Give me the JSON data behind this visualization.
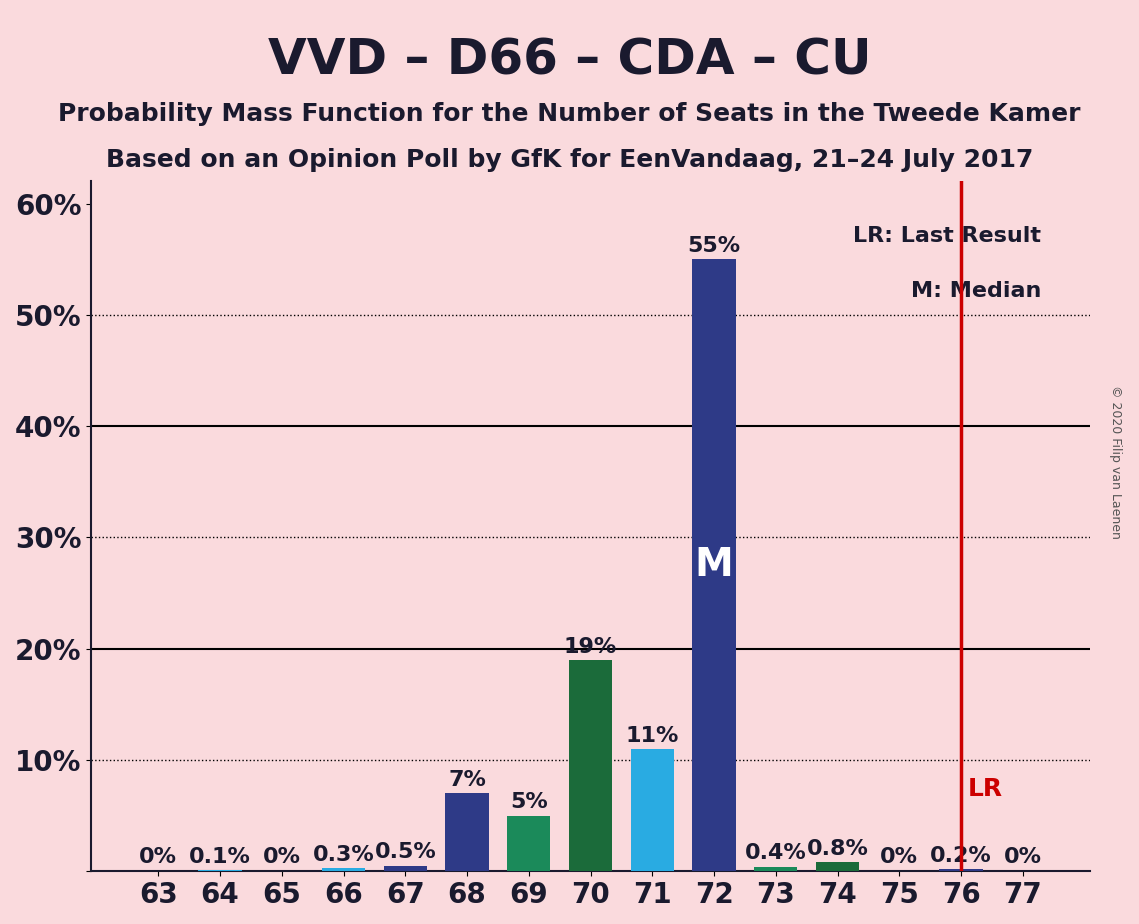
{
  "title": "VVD – D66 – CDA – CU",
  "subtitle1": "Probability Mass Function for the Number of Seats in the Tweede Kamer",
  "subtitle2": "Based on an Opinion Poll by GfK for EenVandaag, 21–24 July 2017",
  "copyright": "© 2020 Filip van Laenen",
  "categories": [
    63,
    64,
    65,
    66,
    67,
    68,
    69,
    70,
    71,
    72,
    73,
    74,
    75,
    76,
    77
  ],
  "values": [
    0.0,
    0.1,
    0.0,
    0.3,
    0.5,
    7.0,
    5.0,
    19.0,
    11.0,
    55.0,
    0.4,
    0.8,
    0.0,
    0.2,
    0.0
  ],
  "bar_colors": [
    "#2E3A87",
    "#29ABE2",
    "#2E3A87",
    "#29ABE2",
    "#2E3A87",
    "#2E3A87",
    "#1B8A5A",
    "#1B6B3A",
    "#29ABE2",
    "#2E3A87",
    "#1B8A5A",
    "#1B6B3A",
    "#2E3A87",
    "#2E3A87",
    "#2E3A87"
  ],
  "background_color": "#FADADD",
  "median_seat": 72,
  "median_label": "M",
  "lr_seat": 76,
  "lr_label": "LR",
  "lr_line_color": "#CC0000",
  "legend_lr": "LR: Last Result",
  "legend_m": "M: Median",
  "ylabel_ticks": [
    0,
    10,
    20,
    30,
    40,
    50,
    60
  ],
  "grid_color": "#000000",
  "title_fontsize": 36,
  "subtitle_fontsize": 18,
  "label_fontsize": 16,
  "tick_fontsize": 20,
  "bar_label_fontsize": 16
}
